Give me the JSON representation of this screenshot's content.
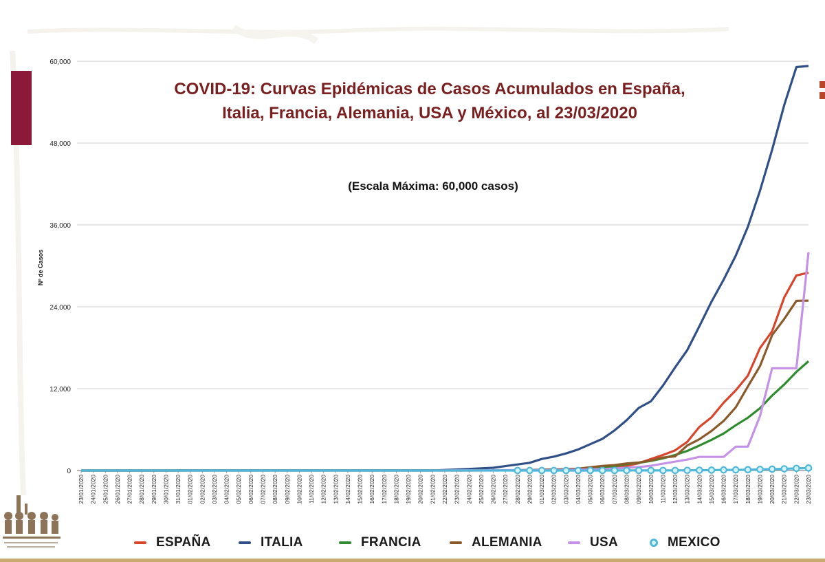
{
  "chart_data": {
    "type": "line",
    "title_line1": "COVID-19: Curvas Epidémicas de Casos Acumulados en España,",
    "title_line2": "Italia, Francia, Alemania, USA y México, al 23/03/2020",
    "subtitle": "(Escala Máxima: 60,000 casos)",
    "ylabel": "Nº de Casos",
    "xlabel": "",
    "ylim": [
      0,
      60000
    ],
    "grid": true,
    "legend_position": "bottom",
    "y_ticks": [
      "0",
      "12,000",
      "24,000",
      "36,000",
      "48,000",
      "60,000"
    ],
    "y_tick_values": [
      0,
      12000,
      24000,
      36000,
      48000,
      60000
    ],
    "x": [
      "23/01/2020",
      "24/01/2020",
      "25/01/2020",
      "26/01/2020",
      "27/01/2020",
      "28/01/2020",
      "29/01/2020",
      "30/01/2020",
      "31/01/2020",
      "01/02/2020",
      "02/02/2020",
      "03/02/2020",
      "04/02/2020",
      "05/02/2020",
      "06/02/2020",
      "07/02/2020",
      "08/02/2020",
      "09/02/2020",
      "10/02/2020",
      "11/02/2020",
      "12/02/2020",
      "13/02/2020",
      "14/02/2020",
      "15/02/2020",
      "16/02/2020",
      "17/02/2020",
      "18/02/2020",
      "19/02/2020",
      "20/02/2020",
      "21/02/2020",
      "22/02/2020",
      "23/02/2020",
      "24/02/2020",
      "25/02/2020",
      "26/02/2020",
      "27/02/2020",
      "28/02/2020",
      "29/02/2020",
      "01/03/2020",
      "02/03/2020",
      "03/03/2020",
      "04/03/2020",
      "05/03/2020",
      "06/03/2020",
      "07/03/2020",
      "08/03/2020",
      "09/03/2020",
      "10/03/2020",
      "11/03/2020",
      "12/03/2020",
      "13/03/2020",
      "14/03/2020",
      "15/03/2020",
      "16/03/2020",
      "17/03/2020",
      "18/03/2020",
      "19/03/2020",
      "20/03/2020",
      "21/03/2020",
      "22/03/2020",
      "23/03/2020"
    ],
    "series": [
      {
        "name": "ESPAÑA",
        "color": "#d9452b",
        "marker": "none",
        "values": [
          0,
          0,
          0,
          0,
          0,
          0,
          0,
          0,
          0,
          1,
          1,
          1,
          1,
          1,
          1,
          1,
          1,
          2,
          2,
          2,
          2,
          2,
          2,
          2,
          2,
          2,
          2,
          2,
          2,
          2,
          2,
          2,
          3,
          6,
          13,
          23,
          45,
          57,
          84,
          120,
          165,
          222,
          259,
          400,
          500,
          673,
          1073,
          1695,
          2277,
          2950,
          4209,
          6391,
          7798,
          9942,
          11748,
          13910,
          17963,
          20410,
          25374,
          28603,
          29000
        ]
      },
      {
        "name": "ITALIA",
        "color": "#2f4f86",
        "marker": "none",
        "values": [
          0,
          0,
          0,
          0,
          0,
          0,
          0,
          0,
          2,
          2,
          2,
          2,
          2,
          2,
          2,
          3,
          3,
          3,
          3,
          3,
          3,
          3,
          3,
          3,
          3,
          3,
          3,
          3,
          3,
          3,
          79,
          150,
          229,
          322,
          400,
          650,
          888,
          1128,
          1694,
          2036,
          2502,
          3089,
          3858,
          4636,
          5883,
          7375,
          9172,
          10149,
          12462,
          15113,
          17660,
          21157,
          24747,
          27980,
          31506,
          35713,
          41035,
          47021,
          53578,
          59138,
          59300
        ]
      },
      {
        "name": "FRANCIA",
        "color": "#2e8b2e",
        "marker": "none",
        "values": [
          0,
          0,
          3,
          3,
          4,
          5,
          5,
          5,
          6,
          6,
          6,
          6,
          6,
          6,
          6,
          6,
          11,
          11,
          11,
          11,
          11,
          11,
          11,
          11,
          12,
          12,
          12,
          12,
          12,
          12,
          12,
          12,
          12,
          12,
          14,
          18,
          38,
          57,
          100,
          130,
          191,
          212,
          285,
          423,
          653,
          949,
          1126,
          1412,
          1784,
          2281,
          2876,
          3661,
          4499,
          5423,
          6633,
          7730,
          9134,
          10995,
          12612,
          14459,
          16018
        ]
      },
      {
        "name": "ALEMANIA",
        "color": "#8b5a2b",
        "marker": "none",
        "values": [
          0,
          0,
          0,
          0,
          1,
          4,
          4,
          4,
          5,
          8,
          10,
          12,
          12,
          12,
          12,
          13,
          13,
          14,
          14,
          16,
          16,
          16,
          16,
          16,
          16,
          16,
          16,
          16,
          16,
          16,
          16,
          16,
          16,
          16,
          18,
          26,
          48,
          79,
          130,
          159,
          196,
          262,
          482,
          670,
          799,
          1040,
          1176,
          1457,
          1908,
          2078,
          3675,
          4585,
          5795,
          7272,
          9257,
          12327,
          15320,
          19848,
          22213,
          24873,
          24900
        ]
      },
      {
        "name": "USA",
        "color": "#c591e6",
        "marker": "none",
        "values": [
          1,
          1,
          2,
          2,
          5,
          5,
          5,
          5,
          5,
          7,
          8,
          8,
          11,
          11,
          11,
          11,
          11,
          11,
          11,
          12,
          12,
          13,
          13,
          15,
          15,
          15,
          15,
          15,
          15,
          15,
          15,
          35,
          35,
          35,
          53,
          53,
          59,
          60,
          62,
          70,
          100,
          130,
          160,
          220,
          300,
          400,
          500,
          700,
          1000,
          1300,
          1600,
          2000,
          2000,
          2000,
          3500,
          3500,
          8000,
          15000,
          15000,
          15000,
          32000
        ]
      },
      {
        "name": "MEXICO",
        "color": "#4fb8d9",
        "marker": "circle",
        "values": [
          0,
          0,
          0,
          0,
          0,
          0,
          0,
          0,
          0,
          0,
          0,
          0,
          0,
          0,
          0,
          0,
          0,
          0,
          0,
          0,
          0,
          0,
          0,
          0,
          0,
          0,
          0,
          0,
          0,
          0,
          0,
          0,
          0,
          0,
          0,
          0,
          2,
          4,
          5,
          5,
          5,
          5,
          5,
          5,
          5,
          7,
          7,
          7,
          8,
          12,
          26,
          41,
          53,
          82,
          93,
          118,
          164,
          203,
          251,
          316,
          367
        ]
      }
    ]
  }
}
